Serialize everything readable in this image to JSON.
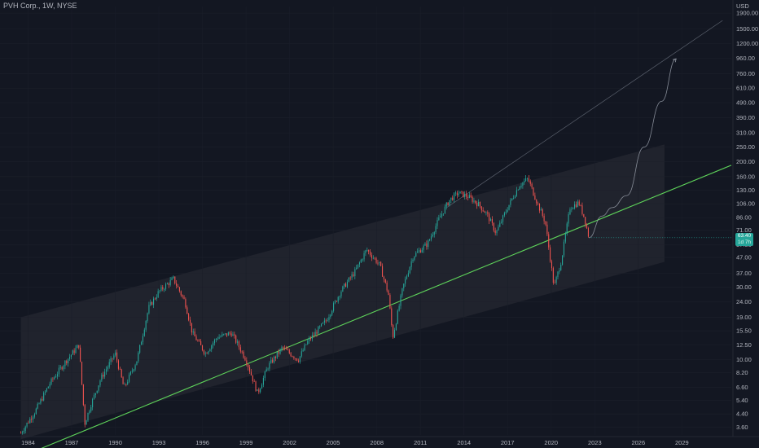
{
  "header": {
    "title": "PVH Corp., 1W, NYSE"
  },
  "currency": "USD",
  "price_badge": {
    "price": "63.40",
    "countdown": "1d 7h"
  },
  "colors": {
    "background": "#131722",
    "up": "#26a69a",
    "down": "#ef5350",
    "trendline": "#5ed35a",
    "channel_fill": "#22252f",
    "projection": "#9aa0ab",
    "axis_text": "#b2b5be"
  },
  "chart_data": {
    "type": "candlestick",
    "title": "PVH Corp., 1W, NYSE",
    "y_scale": "log",
    "ylim": [
      3.2,
      2100
    ],
    "xlim": [
      1983.3,
      2032.4
    ],
    "y_ticks": [
      "1900.00",
      "1500.00",
      "1200.00",
      "960.00",
      "760.00",
      "610.00",
      "490.00",
      "390.00",
      "310.00",
      "250.00",
      "200.00",
      "160.00",
      "130.00",
      "106.00",
      "86.00",
      "71.00",
      "57.00",
      "47.00",
      "37.00",
      "30.00",
      "24.00",
      "19.00",
      "15.50",
      "12.50",
      "10.00",
      "8.20",
      "6.60",
      "5.40",
      "4.40",
      "3.60"
    ],
    "x_ticks": [
      "1984",
      "1987",
      "1990",
      "1993",
      "1996",
      "1999",
      "2002",
      "2005",
      "2008",
      "2011",
      "2014",
      "2017",
      "2020",
      "2023",
      "2026",
      "2029"
    ],
    "price_path": [
      [
        1983.5,
        3.3
      ],
      [
        1984.5,
        4.6
      ],
      [
        1985.5,
        7
      ],
      [
        1986.5,
        9.5
      ],
      [
        1987.5,
        12.5
      ],
      [
        1987.9,
        3.8
      ],
      [
        1988.3,
        5
      ],
      [
        1989,
        7.5
      ],
      [
        1990,
        11
      ],
      [
        1990.6,
        6.5
      ],
      [
        1991.5,
        10
      ],
      [
        1992.3,
        22
      ],
      [
        1993,
        28
      ],
      [
        1994,
        34
      ],
      [
        1994.8,
        24
      ],
      [
        1995.3,
        15
      ],
      [
        1996.2,
        11
      ],
      [
        1997,
        14
      ],
      [
        1998,
        15
      ],
      [
        1999,
        10
      ],
      [
        1999.8,
        6
      ],
      [
        2000.5,
        9
      ],
      [
        2001.5,
        12
      ],
      [
        2002.6,
        10
      ],
      [
        2003.2,
        13
      ],
      [
        2004.5,
        18
      ],
      [
        2005.5,
        28
      ],
      [
        2006.5,
        38
      ],
      [
        2007.3,
        53
      ],
      [
        2008.2,
        42
      ],
      [
        2008.8,
        27
      ],
      [
        2009.1,
        14
      ],
      [
        2009.8,
        30
      ],
      [
        2010.5,
        48
      ],
      [
        2011.5,
        58
      ],
      [
        2012.3,
        85
      ],
      [
        2013,
        112
      ],
      [
        2013.6,
        125
      ],
      [
        2014.3,
        118
      ],
      [
        2015,
        105
      ],
      [
        2015.6,
        90
      ],
      [
        2016.2,
        68
      ],
      [
        2017,
        100
      ],
      [
        2017.8,
        140
      ],
      [
        2018.4,
        155
      ],
      [
        2019,
        110
      ],
      [
        2019.6,
        80
      ],
      [
        2020.2,
        30
      ],
      [
        2020.7,
        45
      ],
      [
        2021.3,
        100
      ],
      [
        2021.9,
        108
      ],
      [
        2022.3,
        85
      ],
      [
        2022.6,
        63.4
      ]
    ],
    "channel": {
      "upper": [
        [
          1983.5,
          19
        ],
        [
          2027.8,
          260
        ]
      ],
      "lower": [
        [
          1983.5,
          3.0
        ],
        [
          2027.8,
          44
        ]
      ]
    },
    "trendline": [
      [
        1983.5,
        2.3
      ],
      [
        2032.4,
        190
      ]
    ],
    "top_line": [
      [
        2012.8,
        100
      ],
      [
        2031.8,
        1700
      ]
    ],
    "projection_curve": [
      [
        2022.6,
        63.4
      ],
      [
        2023.5,
        88
      ],
      [
        2024.2,
        100
      ],
      [
        2025.2,
        120
      ],
      [
        2026.4,
        250
      ],
      [
        2027.6,
        500
      ],
      [
        2028.6,
        950
      ]
    ],
    "last_price": 63.4
  }
}
